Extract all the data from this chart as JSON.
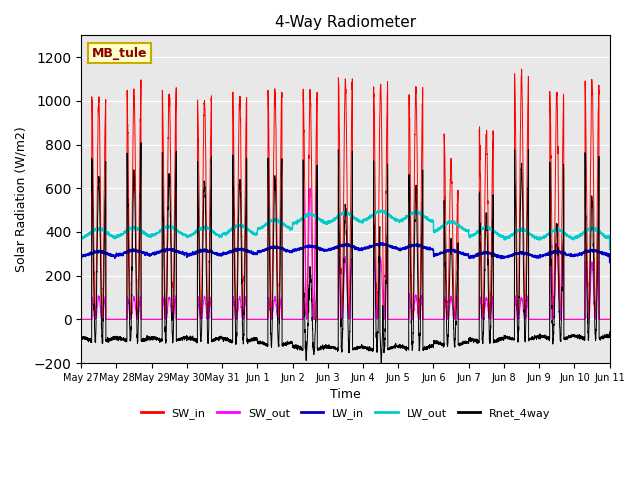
{
  "title": "4-Way Radiometer",
  "xlabel": "Time",
  "ylabel": "Solar Radiation (W/m2)",
  "annotation": "MB_tule",
  "ylim": [
    -200,
    1300
  ],
  "background_color": "#e8e8e8",
  "colors": {
    "SW_in": "#ff0000",
    "SW_out": "#ff00ff",
    "LW_in": "#0000cc",
    "LW_out": "#00cccc",
    "Rnet_4way": "#000000"
  },
  "tick_labels": [
    "May 27",
    "May 28",
    "May 29",
    "May 30",
    "May 31",
    "Jun 1",
    "Jun 2",
    "Jun 3",
    "Jun 4",
    "Jun 5",
    "Jun 6",
    "Jun 7",
    "Jun 8",
    "Jun 9",
    "Jun 10",
    "Jun 11"
  ],
  "n_days": 15,
  "samples_per_day": 288
}
